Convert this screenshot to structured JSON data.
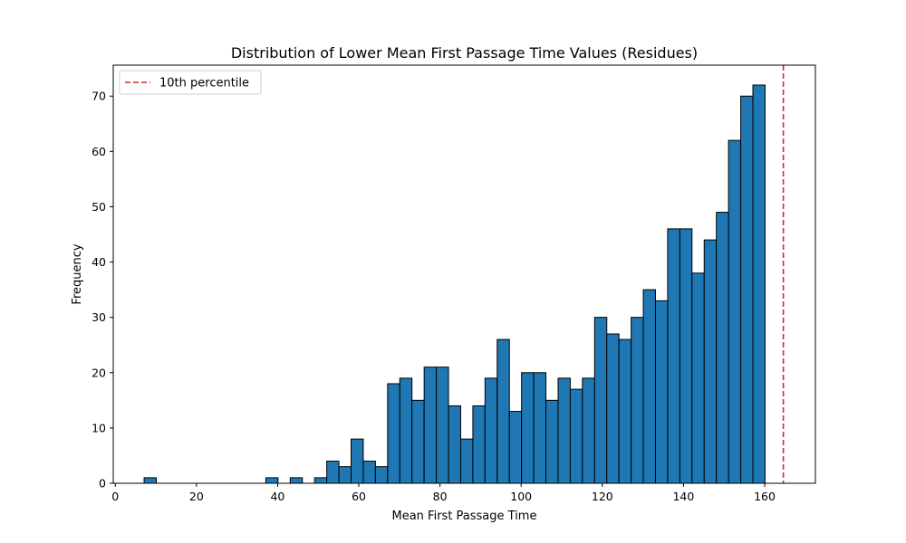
{
  "chart_data": {
    "type": "bar",
    "title": "Distribution of Lower Mean First Passage Time Values (Residues)",
    "xlabel": "Mean First Passage Time",
    "ylabel": "Frequency",
    "xlim": [
      -0.5,
      172.5
    ],
    "ylim": [
      0,
      75.6
    ],
    "xticks": [
      0,
      20,
      40,
      60,
      80,
      100,
      120,
      140,
      160
    ],
    "yticks": [
      0,
      10,
      20,
      30,
      40,
      50,
      60,
      70
    ],
    "bin_start": 7.1,
    "bin_width": 3.0,
    "values": [
      1,
      0,
      0,
      0,
      0,
      0,
      0,
      0,
      0,
      0,
      1,
      0,
      1,
      0,
      1,
      4,
      3,
      8,
      4,
      3,
      18,
      19,
      15,
      21,
      21,
      14,
      8,
      14,
      19,
      26,
      13,
      20,
      20,
      15,
      19,
      17,
      19,
      30,
      27,
      26,
      30,
      35,
      33,
      46,
      46,
      38,
      44,
      49,
      62,
      70,
      72
    ],
    "bar_color": "#1f77b4",
    "edge_color": "#000000",
    "reference_line": {
      "x": 164.6,
      "label": "10th percentile",
      "color": "#d62728",
      "style": "dashed"
    },
    "legend": {
      "position": "top-left",
      "entries": [
        "10th percentile"
      ]
    },
    "grid": false
  }
}
